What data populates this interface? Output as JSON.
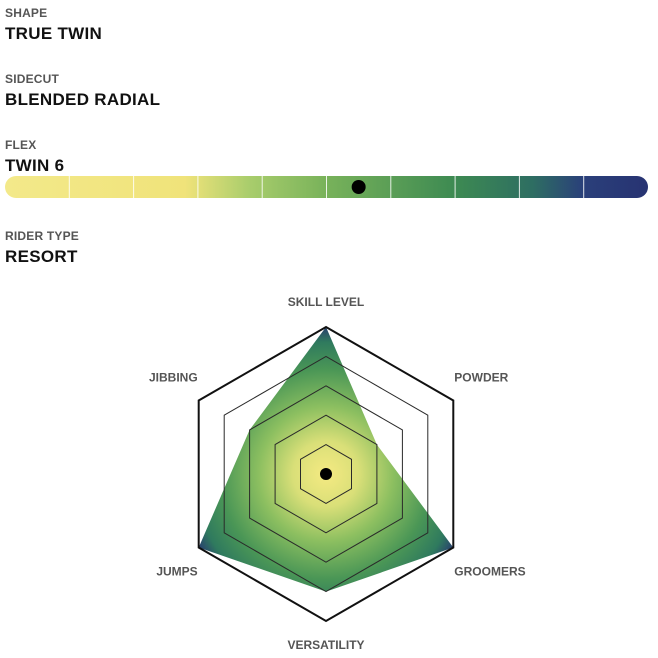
{
  "specs": {
    "shape": {
      "label": "SHAPE",
      "value": "TRUE TWIN"
    },
    "sidecut": {
      "label": "SIDECUT",
      "value": "BLENDED RADIAL"
    },
    "flex": {
      "label": "FLEX",
      "value": "TWIN 6",
      "segments": 10,
      "position_fraction": 0.55
    },
    "rider_type": {
      "label": "RIDER TYPE",
      "value": "RESORT"
    }
  },
  "colors": {
    "gradient": [
      "#f3e98a",
      "#f0e37a",
      "#a9cd6c",
      "#78b25a",
      "#3d8a52",
      "#2e6e62",
      "#2a3f7a",
      "#273372"
    ],
    "marker": "#000000"
  },
  "chart_data": {
    "type": "radar",
    "axes": [
      "SKILL LEVEL",
      "POWDER",
      "GROOMERS",
      "VERSATILITY",
      "JUMPS",
      "JIBBING"
    ],
    "values": [
      5,
      2,
      5,
      4,
      5,
      3
    ],
    "max": 5,
    "rings": 5
  }
}
